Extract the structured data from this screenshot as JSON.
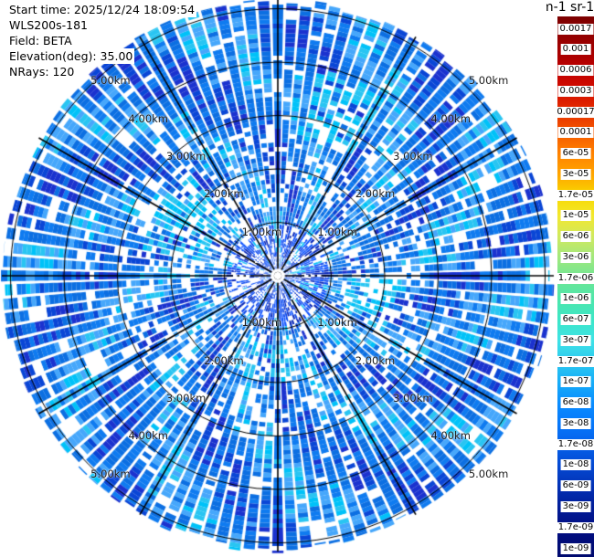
{
  "header": {
    "lines": [
      "Start time: 2025/12/24 18:09:54",
      "WLS200s-181",
      "Field: BETA",
      "Elevation(deg): 35.00",
      "NRays: 120"
    ]
  },
  "chart_data": {
    "type": "heatmap",
    "projection": "polar-ppi",
    "instrument": "WLS200s-181",
    "field": "BETA",
    "start_time": "2025/12/24 18:09:54",
    "elevation_deg": 35.0,
    "n_rays": 120,
    "ray_width_deg": 3,
    "spoke_interval_deg": 30,
    "range_rings_km": [
      1,
      2,
      3,
      4,
      5
    ],
    "ring_labels": [
      "1.00km",
      "2.00km",
      "3.00km",
      "4.00km",
      "5.00km"
    ],
    "max_range_km": 5.2,
    "colorbar": {
      "title": "m-1 sr-1",
      "ticks_top_to_bottom": [
        "0.0017",
        "0.001",
        "0.0006",
        "0.0003",
        "0.00017",
        "0.0001",
        "6e-05",
        "3e-05",
        "1.7e-05",
        "1e-05",
        "6e-06",
        "3e-06",
        "1.7e-06",
        "1e-06",
        "6e-07",
        "3e-07",
        "1.7e-07",
        "1e-07",
        "6e-08",
        "3e-08",
        "1.7e-08",
        "1e-08",
        "6e-09",
        "3e-09",
        "1.7e-09",
        "1e-09"
      ],
      "gradient_stops": [
        {
          "p": 0.0,
          "c": "#7c0000"
        },
        {
          "p": 0.024,
          "c": "#8b0000"
        },
        {
          "p": 0.062,
          "c": "#a30000"
        },
        {
          "p": 0.1,
          "c": "#c00000"
        },
        {
          "p": 0.139,
          "c": "#d40f00"
        },
        {
          "p": 0.177,
          "c": "#e63000"
        },
        {
          "p": 0.216,
          "c": "#f55a00"
        },
        {
          "p": 0.254,
          "c": "#ff8200"
        },
        {
          "p": 0.293,
          "c": "#ffa600"
        },
        {
          "p": 0.331,
          "c": "#f8d800"
        },
        {
          "p": 0.37,
          "c": "#f2e830"
        },
        {
          "p": 0.408,
          "c": "#cfe960"
        },
        {
          "p": 0.447,
          "c": "#a0e87e"
        },
        {
          "p": 0.485,
          "c": "#6ee695"
        },
        {
          "p": 0.524,
          "c": "#4de6ab"
        },
        {
          "p": 0.562,
          "c": "#3ce6c8"
        },
        {
          "p": 0.6,
          "c": "#3ee2e6"
        },
        {
          "p": 0.639,
          "c": "#2cc9f0"
        },
        {
          "p": 0.678,
          "c": "#16acf8"
        },
        {
          "p": 0.716,
          "c": "#0a8dff"
        },
        {
          "p": 0.754,
          "c": "#0677fa"
        },
        {
          "p": 0.793,
          "c": "#0560ea"
        },
        {
          "p": 0.831,
          "c": "#0449d2"
        },
        {
          "p": 0.87,
          "c": "#0331b5"
        },
        {
          "p": 0.908,
          "c": "#021d98"
        },
        {
          "p": 0.947,
          "c": "#010e82"
        },
        {
          "p": 1.0,
          "c": "#000a6e"
        }
      ]
    },
    "field_appearance": {
      "dominant_value_range_m1sr1": "3e-08 to 3e-07 (blue), patches to ~1e-06 (cyan)",
      "missing_gates": "white",
      "palette": {
        "base": "#0f7bf0",
        "base2": "#0c6fe2",
        "light": "#46a7fb",
        "cyan": "#29c5f2",
        "cyan2": "#00c2f8",
        "dark": "#0a46d6",
        "dark2": "#1b32cf",
        "center_base": "#0d49ee",
        "center_base2": "#1055ff",
        "center_dark": "#0827b8",
        "missing": "#ffffff"
      },
      "seed": 20251224,
      "white_prob": {
        "inner": 0.26,
        "mid": 0.22,
        "outer": 0.08
      },
      "bright_patches": [
        {
          "az_deg": 300,
          "half_deg": 18,
          "r0": 80,
          "r1": 150
        },
        {
          "az_deg": 105,
          "half_deg": 12,
          "r0": 80,
          "r1": 130
        },
        {
          "az_deg": 185,
          "half_deg": 15,
          "r0": 75,
          "r1": 115
        },
        {
          "az_deg": 20,
          "half_deg": 10,
          "r0": 150,
          "r1": 230
        }
      ]
    }
  },
  "plot": {
    "grid_color": "#000000",
    "background": "#ffffff",
    "label_color": "#1c1c1c"
  }
}
